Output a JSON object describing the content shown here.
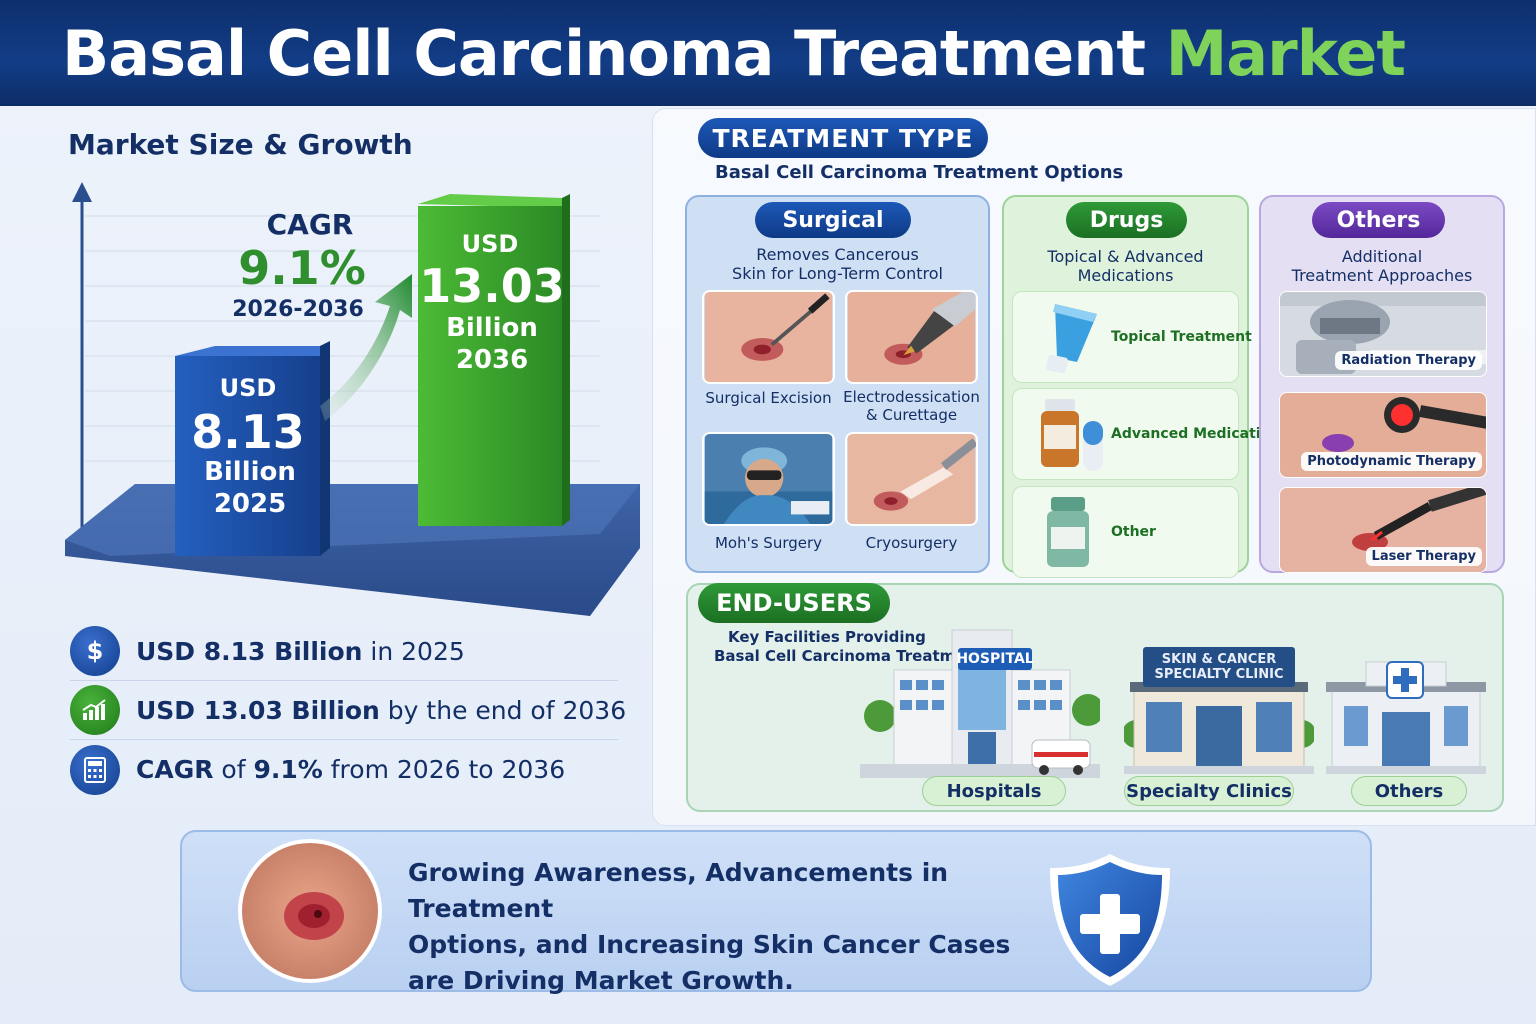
{
  "header": {
    "title_main": "Basal Cell Carcinoma Treatment",
    "title_accent": "Market"
  },
  "market": {
    "title": "Market Size & Growth",
    "bar_2025": {
      "currency": "USD",
      "value": "8.13",
      "unit": "Billion",
      "year": "2025"
    },
    "bar_2036": {
      "currency": "USD",
      "value": "13.03",
      "unit": "Billion",
      "year": "2036"
    },
    "cagr": {
      "label": "CAGR",
      "value": "9.1%",
      "period": "2026-2036"
    },
    "colors": {
      "bar_2025": "#1a4fa8",
      "bar_2036": "#3fa832",
      "arrow": "#2b8a3a"
    }
  },
  "facts": [
    {
      "icon": "dollar-icon",
      "glyph": "$",
      "bold": "USD 8.13 Billion",
      "rest": " in 2025"
    },
    {
      "icon": "growth-chart-icon",
      "glyph": "",
      "bold": "USD 13.03 Billion",
      "rest": " by the end of 2036"
    },
    {
      "icon": "calculator-icon",
      "glyph": "",
      "bold": "CAGR",
      "mid": " of ",
      "bold2": "9.1%",
      "rest": " from 2026 to 2036"
    }
  ],
  "treatment": {
    "pill": "TREATMENT TYPE",
    "subtitle": "Basal Cell Carcinoma Treatment Options",
    "surgical": {
      "pill": "Surgical",
      "desc_line1": "Removes Cancerous",
      "desc_line2": "Skin for Long-Term Control",
      "items": [
        {
          "label": "Surgical Excision"
        },
        {
          "label_line1": "Electrodessication",
          "label_line2": "& Curettage"
        },
        {
          "label": "Moh's Surgery"
        },
        {
          "label": "Cryosurgery"
        }
      ]
    },
    "drugs": {
      "pill": "Drugs",
      "desc_line1": "Topical & Advanced",
      "desc_line2": "Medications",
      "items": [
        "Topical Treatment",
        "Advanced Medication",
        "Other"
      ]
    },
    "others": {
      "pill": "Others",
      "desc_line1": "Additional",
      "desc_line2": "Treatment Approaches",
      "items": [
        "Radiation Therapy",
        "Photodynamic Therapy",
        "Laser Therapy"
      ]
    }
  },
  "end_users": {
    "pill": "END-USERS",
    "desc_line1": "Key Facilities Providing",
    "desc_line2": "Basal Cell Carcinoma Treatment",
    "hospital_sign": "HOSPITAL",
    "clinic_sign_line1": "SKIN & CANCER",
    "clinic_sign_line2": "SPECIALTY CLINIC",
    "labels": [
      "Hospitals",
      "Specialty Clinics",
      "Others"
    ]
  },
  "banner": {
    "line1": "Growing Awareness, Advancements in Treatment",
    "line2": "Options, and Increasing Skin Cancer Cases",
    "line3": "are Driving Market Growth."
  }
}
